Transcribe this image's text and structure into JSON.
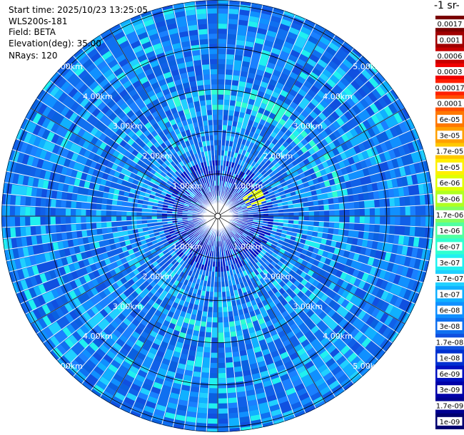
{
  "info": {
    "start_time": "Start time: 2025/10/23 13:25:05",
    "device": "WLS200s-181",
    "field": "Field: BETA",
    "elevation": "Elevation(deg): 35.00",
    "nrays": "NRays: 120"
  },
  "colorbar_title": "-1 sr-",
  "chart_data": {
    "type": "heatmap",
    "projection": "polar (PPI scan)",
    "field": "BETA",
    "range_rings_km": [
      1,
      2,
      3,
      4,
      5
    ],
    "ring_labels": [
      "1.00km",
      "2.00km",
      "3.00km",
      "4.00km",
      "5.00km"
    ],
    "n_rays": 120,
    "colorbar": {
      "ticks": [
        "0.0017",
        "0.001",
        "0.0006",
        "0.0003",
        "0.00017",
        "0.0001",
        "6e-05",
        "3e-05",
        "1.7e-05",
        "1e-05",
        "6e-06",
        "3e-06",
        "1.7e-06",
        "1e-06",
        "6e-07",
        "3e-07",
        "1.7e-07",
        "1e-07",
        "6e-08",
        "3e-08",
        "1.7e-08",
        "1e-08",
        "6e-09",
        "3e-09",
        "1.7e-09",
        "1e-09"
      ],
      "colors": [
        "#7a0000",
        "#a00000",
        "#c80000",
        "#f00000",
        "#ff2000",
        "#ff5000",
        "#ff7800",
        "#ffa000",
        "#ffc800",
        "#fff000",
        "#e0ff00",
        "#b0ff20",
        "#80ff60",
        "#50ffa0",
        "#30ffd0",
        "#20f0f0",
        "#20d0ff",
        "#10b0ff",
        "#1090ff",
        "#1070f0",
        "#1050e0",
        "#0030d0",
        "#0010c0",
        "#0000a8",
        "#000090",
        "#000070"
      ]
    }
  }
}
